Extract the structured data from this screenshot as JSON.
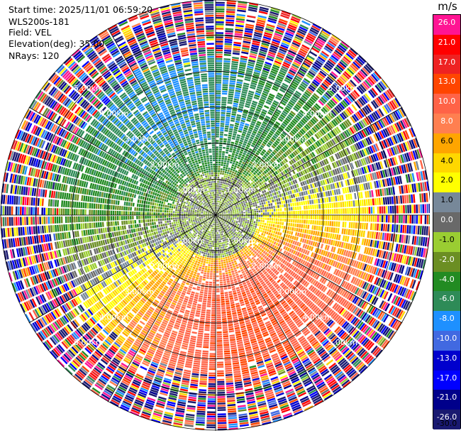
{
  "header": {
    "start_time": "Start time: 2025/11/01 06:59:20",
    "instrument": "WLS200s-181",
    "field": "Field: VEL",
    "elevation": "Elevation(deg): 35.00",
    "nrays": "NRays: 120"
  },
  "colorbar": {
    "unit": "m/s",
    "levels": [
      {
        "label": "26.0",
        "color": "#ff1493"
      },
      {
        "label": "21.0",
        "color": "#ff0000"
      },
      {
        "label": "17.0",
        "color": "#ee2222"
      },
      {
        "label": "13.0",
        "color": "#ff4500"
      },
      {
        "label": "10.0",
        "color": "#ff6347"
      },
      {
        "label": "8.0",
        "color": "#ff7f50"
      },
      {
        "label": "6.0",
        "color": "#ffa500"
      },
      {
        "label": "4.0",
        "color": "#ffd700"
      },
      {
        "label": "2.0",
        "color": "#ffff00"
      },
      {
        "label": "1.0",
        "color": "#778899"
      },
      {
        "label": "0.0",
        "color": "#696969"
      },
      {
        "label": "-1.0",
        "color": "#9acd32"
      },
      {
        "label": "-2.0",
        "color": "#6b8e23"
      },
      {
        "label": "-4.0",
        "color": "#228b22"
      },
      {
        "label": "-6.0",
        "color": "#2e8b57"
      },
      {
        "label": "-8.0",
        "color": "#1e90ff"
      },
      {
        "label": "-10.0",
        "color": "#4169e1"
      },
      {
        "label": "-13.0",
        "color": "#0000cd"
      },
      {
        "label": "-17.0",
        "color": "#0000ff"
      },
      {
        "label": "-21.0",
        "color": "#00008b"
      },
      {
        "label": "-26.0",
        "color": "#191970"
      },
      {
        "label": "-30.0",
        "color": ""
      }
    ]
  },
  "chart_data": {
    "type": "heatmap",
    "projection": "polar",
    "range_unit": "km",
    "max_range_km": 6.0,
    "nrays": 120,
    "range_rings": [
      {
        "label": "1.00km",
        "value": 1.0
      },
      {
        "label": "2.00km",
        "value": 2.0
      },
      {
        "label": "3.00km",
        "value": 3.0
      },
      {
        "label": "4.00km",
        "value": 4.0
      },
      {
        "label": "5.00km",
        "value": 5.0
      }
    ],
    "spoke_angles_deg": [
      0,
      30,
      60,
      90,
      120,
      150,
      180,
      210,
      240,
      270,
      300,
      330
    ],
    "wind_signature": {
      "approach_sector": "north-northwest",
      "approach_speed_ms": -6.0,
      "recede_sector": "south-southeast",
      "recede_speed_ms": 13.0,
      "near_zero_range_km": 2.3,
      "noise_beyond_km": 4.2
    }
  }
}
